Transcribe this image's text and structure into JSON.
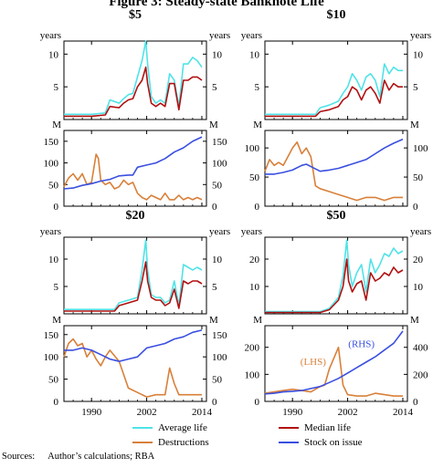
{
  "title": "Figure 3: Steady-state Banknote Life",
  "legend": {
    "average": "Average life",
    "median": "Median life",
    "destructions": "Destructions",
    "stock": "Stock on issue"
  },
  "colors": {
    "average": "#4fe3e8",
    "median": "#b01010",
    "destructions": "#d8803a",
    "stock": "#3a4fe0",
    "axis": "#000000"
  },
  "sources_label": "Sources:",
  "sources": "Author’s calculations; RBA",
  "chart_data": [
    {
      "type": "line",
      "title": "$5",
      "x_ticks": [
        1990,
        2002,
        2014
      ],
      "x_range": [
        1984,
        2015
      ],
      "top": {
        "unit_left": "years",
        "unit_right": "years",
        "ylim": [
          0,
          12
        ],
        "y_ticks": [
          5,
          10
        ],
        "series": [
          {
            "key": "average",
            "x": [
              1984,
              1990,
              1993,
              1994,
              1996,
              1997,
              1998,
              1999,
              2000,
              2001,
              2001.8,
              2002.2,
              2003,
              2004,
              2005,
              2006,
              2007,
              2008,
              2009,
              2010,
              2011,
              2012,
              2013,
              2014
            ],
            "y": [
              0.8,
              0.8,
              1.0,
              3.0,
              2.5,
              3.2,
              3.8,
              4.0,
              6.5,
              9.0,
              12.0,
              8.5,
              3.5,
              2.5,
              3.0,
              2.5,
              7.0,
              6.0,
              2.0,
              8.5,
              8.5,
              9.5,
              9.0,
              8.0
            ]
          },
          {
            "key": "median",
            "x": [
              1984,
              1990,
              1993,
              1994,
              1996,
              1997,
              1998,
              1999,
              2000,
              2001,
              2001.8,
              2002.2,
              2003,
              2004,
              2005,
              2006,
              2007,
              2008,
              2009,
              2010,
              2011,
              2012,
              2013,
              2014
            ],
            "y": [
              0.5,
              0.5,
              0.7,
              2.0,
              1.8,
              2.5,
              3.0,
              3.2,
              5.0,
              6.0,
              8.0,
              5.5,
              2.5,
              2.0,
              2.5,
              2.0,
              5.5,
              5.5,
              1.5,
              6.0,
              6.0,
              6.5,
              6.5,
              6.0
            ]
          }
        ]
      },
      "bottom": {
        "unit_left": "M",
        "unit_right": "M",
        "ylim": [
          0,
          175
        ],
        "y_ticks": [
          0,
          50,
          100,
          150
        ],
        "series": [
          {
            "key": "destructions",
            "x": [
              1984,
              1985,
              1986,
              1987,
              1988,
              1989,
              1990,
              1991,
              1991.5,
              1992,
              1993,
              1994,
              1995,
              1996,
              1997,
              1998,
              1999,
              2000,
              2001,
              2002,
              2003,
              2004,
              2005,
              2006,
              2007,
              2008,
              2009,
              2010,
              2011,
              2012,
              2013,
              2014
            ],
            "y": [
              45,
              65,
              75,
              60,
              75,
              50,
              55,
              120,
              110,
              60,
              50,
              55,
              40,
              45,
              60,
              50,
              55,
              30,
              20,
              15,
              25,
              20,
              15,
              30,
              15,
              15,
              25,
              15,
              20,
              15,
              20,
              15
            ]
          },
          {
            "key": "stock",
            "x": [
              1984,
              1986,
              1988,
              1990,
              1992,
              1994,
              1996,
              1998,
              1999,
              2000,
              2002,
              2004,
              2006,
              2008,
              2010,
              2012,
              2014
            ],
            "y": [
              40,
              42,
              48,
              52,
              58,
              62,
              70,
              72,
              72,
              90,
              95,
              100,
              110,
              125,
              135,
              150,
              160
            ]
          }
        ]
      }
    },
    {
      "type": "line",
      "title": "$10",
      "x_ticks": [
        1990,
        2002,
        2014
      ],
      "x_range": [
        1984,
        2015
      ],
      "top": {
        "unit_left": "years",
        "unit_right": "years",
        "ylim": [
          0,
          12
        ],
        "y_ticks": [
          5,
          10
        ],
        "series": [
          {
            "key": "average",
            "x": [
              1984,
              1995,
              1996,
              1998,
              2000,
              2001,
              2002,
              2003,
              2004,
              2005,
              2006,
              2007,
              2008,
              2009,
              2010,
              2011,
              2012,
              2013,
              2014
            ],
            "y": [
              0.8,
              0.8,
              1.8,
              2.2,
              2.8,
              4.0,
              5.0,
              7.0,
              6.0,
              4.5,
              6.5,
              7.0,
              6.0,
              3.5,
              8.5,
              7.0,
              8.0,
              7.5,
              7.5
            ]
          },
          {
            "key": "median",
            "x": [
              1984,
              1995,
              1996,
              1998,
              2000,
              2001,
              2002,
              2003,
              2004,
              2005,
              2006,
              2007,
              2008,
              2009,
              2010,
              2011,
              2012,
              2013,
              2014
            ],
            "y": [
              0.5,
              0.5,
              1.2,
              1.5,
              2.0,
              3.0,
              3.5,
              5.0,
              4.5,
              3.0,
              4.5,
              5.0,
              4.0,
              2.5,
              6.0,
              4.5,
              5.5,
              5.0,
              5.0
            ]
          }
        ]
      },
      "bottom": {
        "unit_left": "M",
        "unit_right": "M",
        "ylim": [
          0,
          130
        ],
        "y_ticks": [
          0,
          50,
          100
        ],
        "series": [
          {
            "key": "destructions",
            "x": [
              1984,
              1985,
              1986,
              1987,
              1988,
              1989,
              1990,
              1991,
              1992,
              1993,
              1994,
              1995,
              1996,
              1998,
              2000,
              2002,
              2004,
              2006,
              2008,
              2010,
              2012,
              2014
            ],
            "y": [
              60,
              80,
              70,
              75,
              70,
              85,
              100,
              110,
              90,
              100,
              85,
              35,
              30,
              25,
              20,
              15,
              10,
              15,
              15,
              10,
              15,
              15
            ]
          },
          {
            "key": "stock",
            "x": [
              1984,
              1986,
              1988,
              1990,
              1992,
              1993,
              1994,
              1996,
              1998,
              2000,
              2002,
              2004,
              2006,
              2008,
              2010,
              2012,
              2014
            ],
            "y": [
              55,
              55,
              58,
              62,
              70,
              72,
              68,
              60,
              62,
              65,
              70,
              75,
              80,
              90,
              100,
              108,
              115
            ]
          }
        ]
      }
    },
    {
      "type": "line",
      "title": "$20",
      "x_ticks": [
        1990,
        2002,
        2014
      ],
      "x_range": [
        1984,
        2015
      ],
      "top": {
        "unit_left": "years",
        "unit_right": "years",
        "ylim": [
          0,
          14
        ],
        "y_ticks": [
          5,
          10
        ],
        "series": [
          {
            "key": "average",
            "x": [
              1984,
              1995,
              1996,
              1998,
              2000,
              2001,
              2001.8,
              2002.2,
              2003,
              2004,
              2005,
              2006,
              2007,
              2008,
              2009,
              2010,
              2011,
              2012,
              2013,
              2014
            ],
            "y": [
              0.8,
              0.8,
              2.0,
              2.5,
              3.0,
              8.0,
              13.5,
              8.0,
              3.5,
              3.0,
              3.0,
              2.0,
              2.5,
              6.0,
              1.5,
              9.0,
              8.5,
              8.0,
              8.5,
              8.0
            ]
          },
          {
            "key": "median",
            "x": [
              1984,
              1995,
              1996,
              1998,
              2000,
              2001,
              2001.8,
              2002.2,
              2003,
              2004,
              2005,
              2006,
              2007,
              2008,
              2009,
              2010,
              2011,
              2012,
              2013,
              2014
            ],
            "y": [
              0.5,
              0.5,
              1.5,
              2.0,
              2.5,
              6.0,
              9.5,
              6.0,
              3.0,
              2.5,
              2.5,
              1.5,
              2.0,
              4.5,
              1.0,
              6.0,
              5.5,
              6.0,
              6.0,
              5.5
            ]
          }
        ]
      },
      "bottom": {
        "unit_left": "M",
        "unit_right": "M",
        "ylim": [
          0,
          170
        ],
        "y_ticks": [
          0,
          50,
          100,
          150
        ],
        "series": [
          {
            "key": "destructions",
            "x": [
              1984,
              1985,
              1986,
              1987,
              1988,
              1989,
              1990,
              1991,
              1992,
              1993,
              1994,
              1996,
              1998,
              2000,
              2002,
              2004,
              2006,
              2007,
              2008,
              2009,
              2010,
              2012,
              2014
            ],
            "y": [
              100,
              130,
              140,
              125,
              130,
              100,
              115,
              95,
              80,
              100,
              115,
              90,
              30,
              20,
              10,
              15,
              15,
              75,
              40,
              15,
              15,
              15,
              15
            ]
          },
          {
            "key": "stock",
            "x": [
              1984,
              1986,
              1988,
              1990,
              1992,
              1994,
              1996,
              1998,
              2000,
              2002,
              2004,
              2006,
              2008,
              2010,
              2012,
              2014
            ],
            "y": [
              115,
              115,
              120,
              115,
              105,
              95,
              90,
              95,
              100,
              120,
              125,
              130,
              140,
              145,
              155,
              160
            ]
          }
        ]
      }
    },
    {
      "type": "line",
      "title": "$50",
      "x_ticks": [
        1990,
        2002,
        2014
      ],
      "x_range": [
        1984,
        2015
      ],
      "top": {
        "unit_left": "years",
        "unit_right": "years",
        "ylim": [
          0,
          28
        ],
        "y_ticks": [
          10,
          20
        ],
        "series": [
          {
            "key": "average",
            "x": [
              1984,
              1996,
              1998,
              2000,
              2001,
              2001.8,
              2002.2,
              2003,
              2004,
              2005,
              2006,
              2007,
              2008,
              2009,
              2010,
              2011,
              2012,
              2013,
              2014
            ],
            "y": [
              0.8,
              0.8,
              2.0,
              6.0,
              14.0,
              27.0,
              18.0,
              10.0,
              15.0,
              18.0,
              8.0,
              20.0,
              15.0,
              18.0,
              22.0,
              21.0,
              24.0,
              22.0,
              23.0
            ]
          },
          {
            "key": "median",
            "x": [
              1984,
              1996,
              1998,
              2000,
              2001,
              2001.8,
              2002.2,
              2003,
              2004,
              2005,
              2006,
              2007,
              2008,
              2009,
              2010,
              2011,
              2012,
              2013,
              2014
            ],
            "y": [
              0.5,
              0.5,
              1.5,
              5.0,
              10.0,
              20.0,
              12.0,
              8.0,
              11.0,
              12.0,
              5.0,
              15.0,
              12.0,
              13.0,
              15.0,
              14.0,
              17.0,
              15.0,
              16.0
            ]
          }
        ]
      },
      "bottom": {
        "unit_left": "M",
        "unit_right": "M",
        "left_axis_series": "destructions",
        "left_ylim": [
          0,
          280
        ],
        "left_ticks": [
          0,
          100,
          200
        ],
        "right_ylim": [
          0,
          560
        ],
        "right_ticks": [
          0,
          200,
          400
        ],
        "annotations": [
          {
            "text": "(LHS)",
            "key": "destructions",
            "x": 1994.5,
            "y": 135
          },
          {
            "text": "(RHS)",
            "key": "stock",
            "x": 2005,
            "y": 400
          }
        ],
        "series": [
          {
            "key": "destructions",
            "x": [
              1984,
              1986,
              1988,
              1990,
              1992,
              1994,
              1996,
              1997,
              1998,
              1999,
              2000,
              2001,
              2002,
              2004,
              2006,
              2008,
              2010,
              2012,
              2014
            ],
            "y": [
              30,
              35,
              40,
              45,
              40,
              35,
              55,
              60,
              120,
              160,
              200,
              60,
              25,
              20,
              20,
              30,
              25,
              20,
              20
            ]
          },
          {
            "key": "stock",
            "x": [
              1984,
              1986,
              1988,
              1990,
              1992,
              1994,
              1996,
              1998,
              2000,
              2002,
              2004,
              2006,
              2008,
              2010,
              2012,
              2014
            ],
            "y": [
              55,
              60,
              70,
              75,
              80,
              95,
              110,
              140,
              170,
              210,
              250,
              290,
              330,
              380,
              430,
              520
            ]
          }
        ]
      }
    }
  ]
}
